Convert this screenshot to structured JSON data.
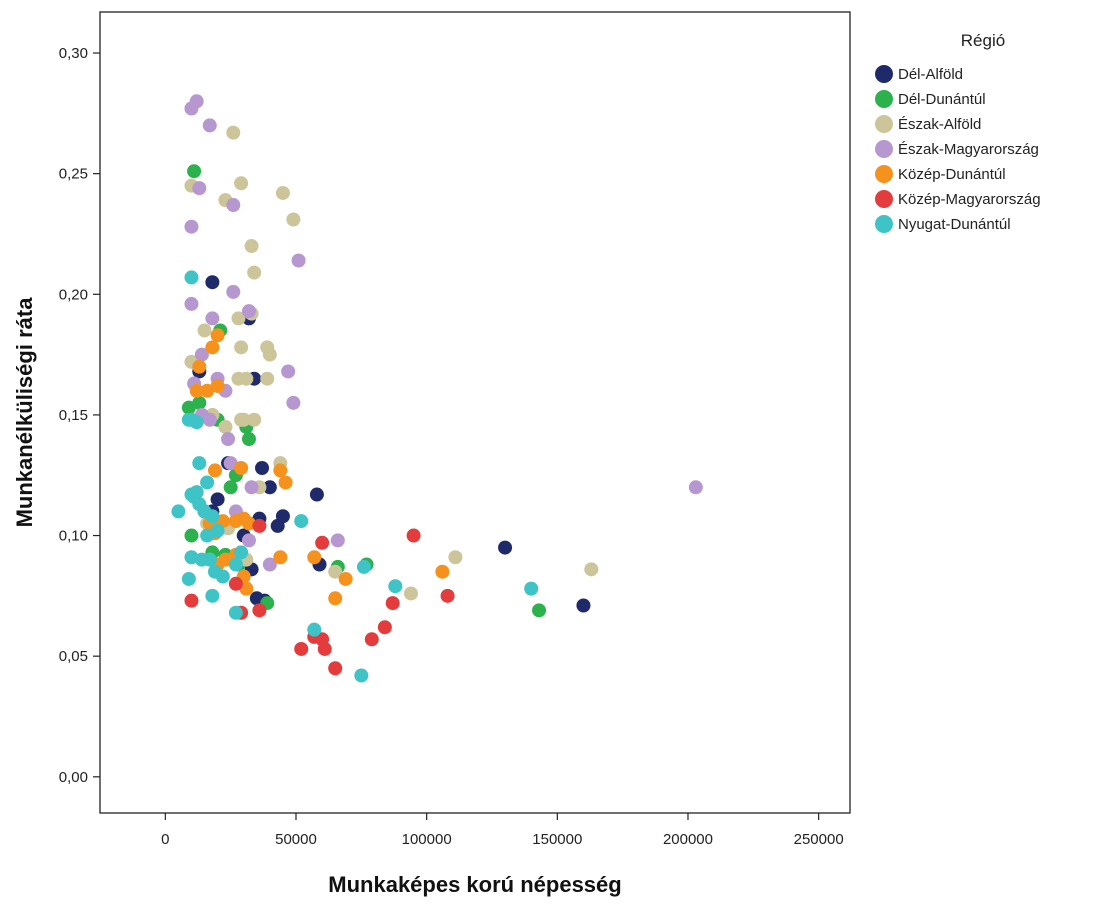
{
  "chart_data": {
    "type": "scatter",
    "title": "",
    "xlabel": "Munkaképes korú népesség",
    "ylabel": "Munkanélküliségi ráta",
    "xlim": [
      -25000,
      262000
    ],
    "ylim": [
      -0.015,
      0.317
    ],
    "x_ticks": [
      0,
      50000,
      100000,
      150000,
      200000,
      250000
    ],
    "x_tick_labels": [
      "0",
      "50000",
      "100000",
      "150000",
      "200000",
      "250000"
    ],
    "y_ticks": [
      0,
      0.05,
      0.1,
      0.15,
      0.2,
      0.25,
      0.3
    ],
    "y_tick_labels": [
      "0,00",
      "0,05",
      "0,10",
      "0,15",
      "0,20",
      "0,25",
      "0,30"
    ],
    "grid": false,
    "legend": {
      "title": "Régió",
      "position": "right"
    },
    "series": [
      {
        "name": "Dél-Alföld",
        "color": "#1f2a6b",
        "points": [
          [
            18000,
            0.205
          ],
          [
            13000,
            0.168
          ],
          [
            32000,
            0.19
          ],
          [
            34000,
            0.165
          ],
          [
            24000,
            0.13
          ],
          [
            37000,
            0.128
          ],
          [
            40000,
            0.12
          ],
          [
            15000,
            0.11
          ],
          [
            18000,
            0.11
          ],
          [
            20000,
            0.115
          ],
          [
            36000,
            0.107
          ],
          [
            45000,
            0.108
          ],
          [
            43000,
            0.104
          ],
          [
            58000,
            0.117
          ],
          [
            30000,
            0.1
          ],
          [
            59000,
            0.088
          ],
          [
            130000,
            0.095
          ],
          [
            160000,
            0.071
          ],
          [
            33000,
            0.086
          ],
          [
            38000,
            0.073
          ],
          [
            35000,
            0.074
          ]
        ]
      },
      {
        "name": "Dél-Dunántúl",
        "color": "#2bb24c",
        "points": [
          [
            11000,
            0.251
          ],
          [
            21000,
            0.185
          ],
          [
            9000,
            0.153
          ],
          [
            13000,
            0.155
          ],
          [
            20000,
            0.148
          ],
          [
            31000,
            0.145
          ],
          [
            32000,
            0.14
          ],
          [
            27000,
            0.125
          ],
          [
            25000,
            0.12
          ],
          [
            10000,
            0.1
          ],
          [
            23000,
            0.092
          ],
          [
            28000,
            0.088
          ],
          [
            66000,
            0.087
          ],
          [
            77000,
            0.088
          ],
          [
            143000,
            0.069
          ],
          [
            39000,
            0.072
          ],
          [
            18000,
            0.093
          ]
        ]
      },
      {
        "name": "Észak-Alföld",
        "color": "#cdc59a",
        "points": [
          [
            26000,
            0.267
          ],
          [
            10000,
            0.245
          ],
          [
            29000,
            0.246
          ],
          [
            23000,
            0.239
          ],
          [
            45000,
            0.242
          ],
          [
            49000,
            0.231
          ],
          [
            33000,
            0.22
          ],
          [
            34000,
            0.209
          ],
          [
            28000,
            0.19
          ],
          [
            33000,
            0.192
          ],
          [
            15000,
            0.185
          ],
          [
            10000,
            0.172
          ],
          [
            29000,
            0.178
          ],
          [
            39000,
            0.178
          ],
          [
            40000,
            0.175
          ],
          [
            28000,
            0.165
          ],
          [
            31000,
            0.165
          ],
          [
            39000,
            0.165
          ],
          [
            30000,
            0.148
          ],
          [
            29000,
            0.148
          ],
          [
            34000,
            0.148
          ],
          [
            18000,
            0.15
          ],
          [
            23000,
            0.145
          ],
          [
            44000,
            0.13
          ],
          [
            36000,
            0.12
          ],
          [
            24000,
            0.103
          ],
          [
            16000,
            0.105
          ],
          [
            65000,
            0.085
          ],
          [
            94000,
            0.076
          ],
          [
            111000,
            0.091
          ],
          [
            163000,
            0.086
          ],
          [
            31000,
            0.09
          ]
        ]
      },
      {
        "name": "Észak-Magyarország",
        "color": "#b697cf",
        "points": [
          [
            10000,
            0.277
          ],
          [
            12000,
            0.28
          ],
          [
            17000,
            0.27
          ],
          [
            13000,
            0.244
          ],
          [
            26000,
            0.237
          ],
          [
            10000,
            0.228
          ],
          [
            51000,
            0.214
          ],
          [
            10000,
            0.196
          ],
          [
            26000,
            0.201
          ],
          [
            32000,
            0.193
          ],
          [
            18000,
            0.19
          ],
          [
            14000,
            0.175
          ],
          [
            11000,
            0.163
          ],
          [
            20000,
            0.165
          ],
          [
            23000,
            0.16
          ],
          [
            14000,
            0.15
          ],
          [
            17000,
            0.148
          ],
          [
            24000,
            0.14
          ],
          [
            47000,
            0.168
          ],
          [
            49000,
            0.155
          ],
          [
            33000,
            0.12
          ],
          [
            40000,
            0.088
          ],
          [
            66000,
            0.098
          ],
          [
            25000,
            0.13
          ],
          [
            203000,
            0.12
          ],
          [
            27000,
            0.11
          ],
          [
            32000,
            0.098
          ]
        ]
      },
      {
        "name": "Közép-Dunántúl",
        "color": "#f5921e",
        "points": [
          [
            20000,
            0.183
          ],
          [
            18000,
            0.178
          ],
          [
            13000,
            0.17
          ],
          [
            12000,
            0.16
          ],
          [
            16000,
            0.16
          ],
          [
            20000,
            0.162
          ],
          [
            29000,
            0.128
          ],
          [
            19000,
            0.127
          ],
          [
            44000,
            0.127
          ],
          [
            46000,
            0.122
          ],
          [
            17000,
            0.105
          ],
          [
            22000,
            0.106
          ],
          [
            27000,
            0.106
          ],
          [
            30000,
            0.107
          ],
          [
            32000,
            0.105
          ],
          [
            19000,
            0.101
          ],
          [
            57000,
            0.091
          ],
          [
            44000,
            0.091
          ],
          [
            20000,
            0.088
          ],
          [
            27000,
            0.092
          ],
          [
            30000,
            0.083
          ],
          [
            106000,
            0.085
          ],
          [
            69000,
            0.082
          ],
          [
            65000,
            0.074
          ],
          [
            31000,
            0.078
          ],
          [
            23000,
            0.09
          ]
        ]
      },
      {
        "name": "Közép-Magyarország",
        "color": "#e43b3c",
        "points": [
          [
            95000,
            0.1
          ],
          [
            60000,
            0.097
          ],
          [
            36000,
            0.104
          ],
          [
            10000,
            0.073
          ],
          [
            27000,
            0.08
          ],
          [
            36000,
            0.069
          ],
          [
            29000,
            0.068
          ],
          [
            87000,
            0.072
          ],
          [
            108000,
            0.075
          ],
          [
            84000,
            0.062
          ],
          [
            79000,
            0.057
          ],
          [
            57000,
            0.058
          ],
          [
            60000,
            0.057
          ],
          [
            52000,
            0.053
          ],
          [
            61000,
            0.053
          ],
          [
            65000,
            0.045
          ]
        ]
      },
      {
        "name": "Nyugat-Dunántúl",
        "color": "#3ec3c6",
        "points": [
          [
            10000,
            0.207
          ],
          [
            9000,
            0.148
          ],
          [
            10000,
            0.148
          ],
          [
            12000,
            0.147
          ],
          [
            13000,
            0.13
          ],
          [
            16000,
            0.122
          ],
          [
            10000,
            0.117
          ],
          [
            11000,
            0.116
          ],
          [
            12000,
            0.118
          ],
          [
            13000,
            0.113
          ],
          [
            15000,
            0.11
          ],
          [
            5000,
            0.11
          ],
          [
            18000,
            0.108
          ],
          [
            16000,
            0.1
          ],
          [
            20000,
            0.102
          ],
          [
            10000,
            0.091
          ],
          [
            14000,
            0.09
          ],
          [
            17000,
            0.09
          ],
          [
            19000,
            0.085
          ],
          [
            22000,
            0.083
          ],
          [
            27000,
            0.088
          ],
          [
            29000,
            0.093
          ],
          [
            9000,
            0.082
          ],
          [
            52000,
            0.106
          ],
          [
            18000,
            0.075
          ],
          [
            27000,
            0.068
          ],
          [
            76000,
            0.087
          ],
          [
            88000,
            0.079
          ],
          [
            140000,
            0.078
          ],
          [
            57000,
            0.061
          ],
          [
            75000,
            0.042
          ]
        ]
      }
    ]
  }
}
